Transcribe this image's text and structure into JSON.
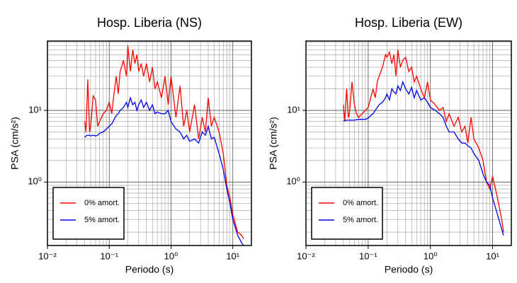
{
  "chart_data": [
    {
      "type": "line",
      "title": "Hosp. Liberia (NS)",
      "x_label": "Periodo (s)",
      "y_label": "PSA (cm/s²)",
      "x_scale": "log",
      "y_scale": "log",
      "grid": true,
      "legend": "lower left",
      "xlim": [
        0.01,
        20
      ],
      "ylim": [
        0.13,
        93
      ],
      "xticks": [
        {
          "value": 0.01,
          "label": "10⁻²"
        },
        {
          "value": 0.1,
          "label": "10⁻¹"
        },
        {
          "value": 1,
          "label": "10⁰"
        },
        {
          "value": 10,
          "label": "10¹"
        }
      ],
      "yticks": [
        {
          "value": 1,
          "label": "10⁰"
        },
        {
          "value": 10,
          "label": "10¹"
        }
      ],
      "x": [
        0.04,
        0.042,
        0.045,
        0.048,
        0.05,
        0.055,
        0.06,
        0.065,
        0.07,
        0.08,
        0.09,
        0.1,
        0.11,
        0.12,
        0.13,
        0.14,
        0.15,
        0.17,
        0.19,
        0.2,
        0.22,
        0.24,
        0.26,
        0.28,
        0.3,
        0.33,
        0.36,
        0.4,
        0.45,
        0.5,
        0.55,
        0.6,
        0.7,
        0.8,
        0.9,
        1.0,
        1.2,
        1.4,
        1.6,
        1.8,
        2.0,
        2.4,
        2.8,
        3.2,
        3.6,
        4.0,
        4.5,
        5.0,
        6.0,
        7.0,
        8.0,
        9.0,
        10,
        12,
        14,
        15
      ],
      "series": [
        {
          "name": "0% amort.",
          "color": "#ff0000",
          "values": [
            7,
            5,
            27,
            5,
            6,
            16,
            14,
            6,
            7,
            9,
            10,
            13,
            9,
            18,
            30,
            17,
            35,
            50,
            30,
            80,
            35,
            70,
            45,
            60,
            35,
            45,
            30,
            45,
            25,
            40,
            20,
            25,
            15,
            30,
            12,
            30,
            8,
            22,
            6,
            10,
            5,
            12,
            4,
            8,
            5,
            15,
            6,
            8,
            5,
            2.5,
            0.9,
            0.6,
            0.35,
            0.2,
            0.18,
            0.16
          ]
        },
        {
          "name": "5% amort.",
          "color": "#0000ee",
          "values": [
            4.2,
            4.4,
            4.5,
            4.5,
            4.4,
            4.5,
            4.4,
            4.5,
            4.8,
            5,
            5.5,
            6,
            6.5,
            7.5,
            8.5,
            9,
            10,
            11,
            13,
            11,
            15,
            12,
            13,
            10,
            12,
            14,
            11,
            13,
            10,
            12,
            9,
            9.5,
            9,
            9,
            10,
            7,
            5.5,
            5,
            4,
            4.5,
            3.7,
            4,
            3.5,
            5,
            4.5,
            6,
            4,
            4.2,
            2.5,
            1.5,
            0.8,
            0.5,
            0.3,
            0.18,
            0.14,
            0.13
          ]
        }
      ]
    },
    {
      "type": "line",
      "title": "Hosp. Liberia (EW)",
      "x_label": "Periodo (s)",
      "y_label": "PSA (cm/s²)",
      "x_scale": "log",
      "y_scale": "log",
      "grid": true,
      "legend": "lower left",
      "xlim": [
        0.01,
        20
      ],
      "ylim": [
        0.13,
        93
      ],
      "xticks": [
        {
          "value": 0.01,
          "label": "10⁻²"
        },
        {
          "value": 0.1,
          "label": "10⁻¹"
        },
        {
          "value": 1,
          "label": "10⁰"
        },
        {
          "value": 10,
          "label": "10¹"
        }
      ],
      "yticks": [
        {
          "value": 1,
          "label": "10⁰"
        },
        {
          "value": 10,
          "label": "10¹"
        }
      ],
      "x": [
        0.04,
        0.042,
        0.045,
        0.048,
        0.05,
        0.055,
        0.06,
        0.065,
        0.07,
        0.08,
        0.09,
        0.1,
        0.11,
        0.12,
        0.13,
        0.14,
        0.15,
        0.17,
        0.19,
        0.2,
        0.22,
        0.24,
        0.26,
        0.28,
        0.3,
        0.33,
        0.36,
        0.4,
        0.45,
        0.5,
        0.55,
        0.6,
        0.7,
        0.8,
        0.9,
        1.0,
        1.2,
        1.4,
        1.6,
        1.8,
        2.0,
        2.4,
        2.8,
        3.2,
        3.6,
        4.0,
        4.5,
        5.0,
        6.0,
        7.0,
        8.0,
        9.0,
        10,
        12,
        14,
        15
      ],
      "series": [
        {
          "name": "0% amort.",
          "color": "#ff0000",
          "values": [
            12,
            7,
            20,
            8,
            9,
            25,
            12,
            9,
            8,
            9,
            10,
            11,
            15,
            20,
            15,
            25,
            30,
            40,
            60,
            55,
            65,
            45,
            60,
            30,
            70,
            40,
            50,
            55,
            35,
            40,
            25,
            30,
            20,
            15,
            25,
            14,
            12,
            10,
            11,
            7,
            9,
            6,
            8,
            5,
            6,
            3.5,
            8,
            4,
            3,
            2,
            1,
            0.8,
            1.2,
            0.6,
            0.3,
            0.2
          ]
        },
        {
          "name": "5% amort.",
          "color": "#0000ee",
          "values": [
            7.2,
            7.2,
            7.3,
            7.3,
            7.3,
            7.3,
            7.3,
            7.4,
            7.5,
            7.5,
            7.5,
            7.8,
            8.5,
            9,
            10,
            11,
            12,
            13,
            15,
            17,
            14,
            20,
            18,
            17,
            22,
            19,
            25,
            20,
            17,
            21,
            15,
            19,
            14,
            15,
            13,
            11,
            10,
            9,
            8,
            6,
            5,
            5,
            4,
            3.5,
            3.5,
            3.2,
            3,
            2.5,
            2,
            1.3,
            1,
            0.9,
            0.6,
            0.35,
            0.22,
            0.18
          ]
        }
      ]
    }
  ]
}
